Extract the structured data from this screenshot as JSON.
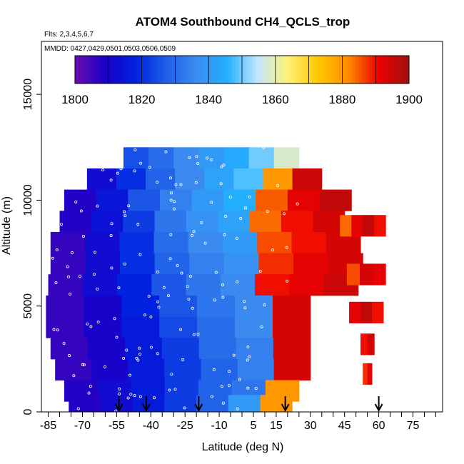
{
  "chart_data": {
    "type": "heatmap",
    "title": "ATOM4 Southbound CH4_QCLS_trop",
    "subtitle_flights": "Flts: 2,3,4,5,6,7",
    "subtitle_dates": "MMDD: 0427,0429,0501,0503,0506,0509",
    "xlabel": "Latitude (deg N)",
    "ylabel": "Altitude (m)",
    "xlim": [
      -88,
      88
    ],
    "ylim": [
      0,
      17500
    ],
    "x_ticks": [
      "-85",
      "-70",
      "-55",
      "-40",
      "-25",
      "-10",
      "5",
      "15",
      "30",
      "45",
      "60",
      "75"
    ],
    "y_ticks": [
      "0",
      "5000",
      "10000",
      "15000"
    ],
    "colorbar": {
      "min": 1800,
      "max": 1900,
      "ticks": [
        "1800",
        "1820",
        "1840",
        "1860",
        "1880",
        "1900"
      ],
      "colors": [
        "#6a0dad",
        "#1a00c8",
        "#0022e0",
        "#1f5fe8",
        "#3b8cf0",
        "#22b0ff",
        "#bfe6ff",
        "#fff27a",
        "#ffc800",
        "#ff8c00",
        "#ee0000",
        "#a01010"
      ]
    },
    "arrow_latitudes": [
      -54,
      -42,
      -19,
      19,
      60
    ],
    "bands": [
      {
        "alt": 12000,
        "lat0": -52,
        "lat1": 25,
        "values": [
          1825,
          1830,
          1836,
          1840,
          1844,
          1850,
          1858
        ]
      },
      {
        "alt": 11000,
        "lat0": -68,
        "lat1": 35,
        "values": [
          1812,
          1820,
          1828,
          1836,
          1842,
          1848,
          1880,
          1895
        ]
      },
      {
        "alt": 10000,
        "lat0": -78,
        "lat1": 48,
        "values": [
          1808,
          1815,
          1826,
          1834,
          1840,
          1845,
          1885,
          1892,
          1896
        ]
      },
      {
        "alt": 9000,
        "lat0": -80,
        "lat1": 45,
        "values": [
          1808,
          1814,
          1822,
          1832,
          1838,
          1842,
          1884,
          1890,
          1894
        ]
      },
      {
        "alt": 8000,
        "lat0": -84,
        "lat1": 52,
        "values": [
          1806,
          1812,
          1820,
          1830,
          1836,
          1840,
          1886,
          1890,
          1894
        ]
      },
      {
        "alt": 7000,
        "lat0": -84,
        "lat1": 53,
        "values": [
          1806,
          1812,
          1820,
          1828,
          1834,
          1838,
          1888,
          1892,
          1894
        ]
      },
      {
        "alt": 6000,
        "lat0": -85,
        "lat1": 51,
        "values": [
          1806,
          1812,
          1818,
          1826,
          1832,
          1836,
          1890,
          1892,
          1895
        ]
      },
      {
        "alt": 5000,
        "lat0": -86,
        "lat1": 30,
        "values": [
          1806,
          1810,
          1818,
          1826,
          1832,
          1836,
          1894
        ]
      },
      {
        "alt": 4000,
        "lat0": -86,
        "lat1": 30,
        "values": [
          1806,
          1810,
          1816,
          1824,
          1830,
          1836,
          1894
        ]
      },
      {
        "alt": 3000,
        "lat0": -84,
        "lat1": 30,
        "values": [
          1806,
          1810,
          1816,
          1822,
          1830,
          1834,
          1894
        ]
      },
      {
        "alt": 2000,
        "lat0": -82,
        "lat1": 30,
        "values": [
          1806,
          1810,
          1816,
          1822,
          1828,
          1834,
          1894
        ]
      },
      {
        "alt": 1000,
        "lat0": -78,
        "lat1": 25,
        "values": [
          1808,
          1812,
          1816,
          1822,
          1828,
          1832,
          1880
        ]
      },
      {
        "alt": 300,
        "lat0": -76,
        "lat1": 22,
        "values": [
          1808,
          1812,
          1816,
          1822,
          1828,
          1840,
          1880
        ]
      }
    ],
    "nh_patches": [
      {
        "alt": 8800,
        "lat0": 43,
        "lat1": 63,
        "values": [
          1884,
          1892,
          1896,
          1890
        ]
      },
      {
        "alt": 6500,
        "lat0": 46,
        "lat1": 63,
        "values": [
          1886,
          1894,
          1892
        ]
      },
      {
        "alt": 4700,
        "lat0": 47,
        "lat1": 62,
        "values": [
          1892,
          1896,
          1890
        ]
      },
      {
        "alt": 3200,
        "lat0": 52,
        "lat1": 58,
        "values": [
          1890,
          1894
        ]
      },
      {
        "alt": 1800,
        "lat0": 53,
        "lat1": 57,
        "values": [
          1888,
          1892
        ]
      }
    ]
  }
}
